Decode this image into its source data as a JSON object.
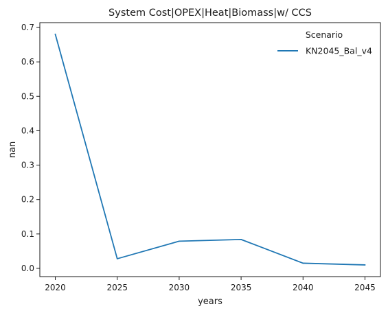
{
  "chart_data": {
    "type": "line",
    "title": "System Cost|OPEX|Heat|Biomass|w/ CCS",
    "xlabel": "years",
    "ylabel": "nan",
    "x": [
      2020,
      2025,
      2030,
      2035,
      2040,
      2045
    ],
    "series": [
      {
        "name": "KN2045_Bal_v4",
        "values": [
          0.68,
          0.028,
          0.079,
          0.084,
          0.015,
          0.01
        ],
        "color": "#1f77b4"
      }
    ],
    "xticks": [
      2020,
      2025,
      2030,
      2035,
      2040,
      2045
    ],
    "xtick_labels": [
      "2020",
      "2025",
      "2030",
      "2035",
      "2040",
      "2045"
    ],
    "yticks": [
      0.0,
      0.1,
      0.2,
      0.3,
      0.4,
      0.5,
      0.6,
      0.7
    ],
    "ytick_labels": [
      "0.0",
      "0.1",
      "0.2",
      "0.3",
      "0.4",
      "0.5",
      "0.6",
      "0.7"
    ],
    "xlim": [
      2018.75,
      2046.25
    ],
    "ylim": [
      -0.024,
      0.714
    ],
    "grid": false,
    "legend": {
      "title": "Scenario",
      "placement": "top-right",
      "frame": false
    }
  }
}
